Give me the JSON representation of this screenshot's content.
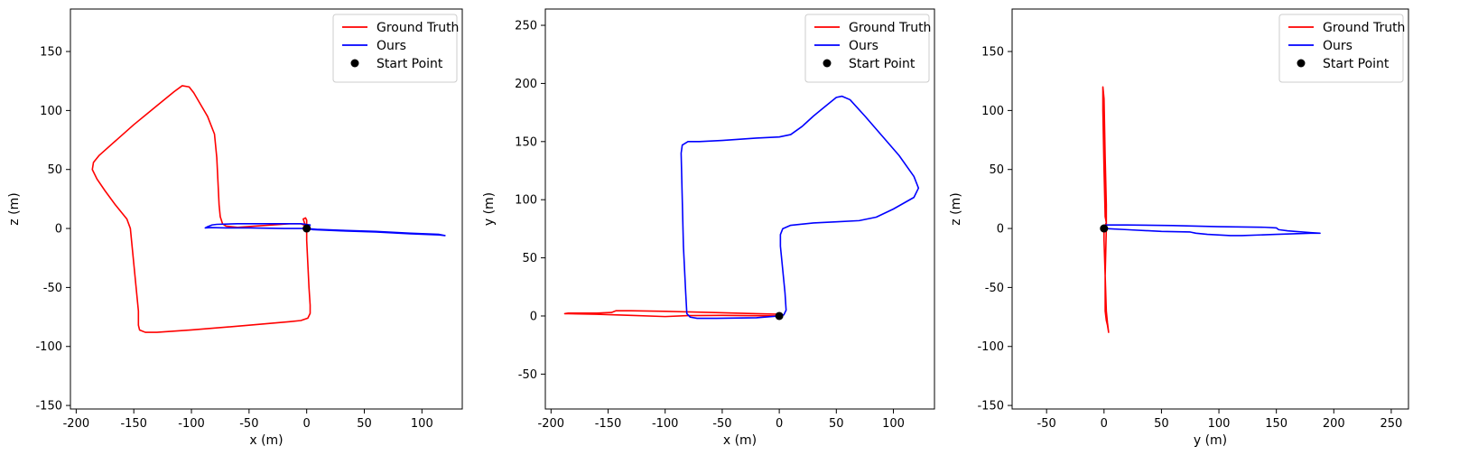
{
  "colors": {
    "ground_truth": "#ff0000",
    "ours": "#0000ff",
    "start": "#000000",
    "frame": "#000000",
    "legend_border": "#cccccc"
  },
  "chart_data": [
    {
      "type": "line",
      "xlabel": "x (m)",
      "ylabel": "z (m)",
      "xlim": [
        -205,
        135
      ],
      "ylim": [
        -153,
        186
      ],
      "xticks": [
        -200,
        -150,
        -100,
        -50,
        0,
        50,
        100
      ],
      "yticks": [
        -150,
        -100,
        -50,
        0,
        50,
        100,
        150
      ],
      "legend": {
        "position": "top-right",
        "entries": [
          "Ground Truth",
          "Ours",
          "Start Point"
        ]
      },
      "series": [
        {
          "name": "Ground Truth",
          "style": "line",
          "points": [
            [
              0,
              0
            ],
            [
              -2,
              5
            ],
            [
              -3,
              8
            ],
            [
              -1,
              9
            ],
            [
              0,
              7
            ],
            [
              0,
              -10
            ],
            [
              1,
              -30
            ],
            [
              2,
              -50
            ],
            [
              3,
              -65
            ],
            [
              3,
              -72
            ],
            [
              1,
              -76
            ],
            [
              -5,
              -78
            ],
            [
              -15,
              -79
            ],
            [
              -50,
              -82
            ],
            [
              -100,
              -86
            ],
            [
              -130,
              -88
            ],
            [
              -140,
              -88
            ],
            [
              -145,
              -86
            ],
            [
              -146,
              -82
            ],
            [
              -146,
              -70
            ],
            [
              -148,
              -50
            ],
            [
              -150,
              -30
            ],
            [
              -152,
              -10
            ],
            [
              -153,
              0
            ],
            [
              -156,
              8
            ],
            [
              -166,
              20
            ],
            [
              -175,
              32
            ],
            [
              -182,
              42
            ],
            [
              -186,
              50
            ],
            [
              -185,
              56
            ],
            [
              -180,
              62
            ],
            [
              -165,
              75
            ],
            [
              -150,
              88
            ],
            [
              -130,
              104
            ],
            [
              -115,
              116
            ],
            [
              -108,
              121
            ],
            [
              -102,
              120
            ],
            [
              -98,
              115
            ],
            [
              -92,
              105
            ],
            [
              -86,
              95
            ],
            [
              -80,
              80
            ],
            [
              -78,
              60
            ],
            [
              -77,
              40
            ],
            [
              -76,
              20
            ],
            [
              -75,
              10
            ],
            [
              -73,
              4
            ],
            [
              -70,
              2
            ],
            [
              -60,
              1
            ],
            [
              -45,
              2
            ],
            [
              -30,
              3
            ],
            [
              -15,
              4
            ],
            [
              -5,
              4
            ],
            [
              0,
              2
            ],
            [
              0,
              0
            ]
          ]
        },
        {
          "name": "Ours",
          "style": "line",
          "points": [
            [
              0,
              0
            ],
            [
              -20,
              0
            ],
            [
              -50,
              0.5
            ],
            [
              -70,
              0.5
            ],
            [
              -83,
              0.8
            ],
            [
              -88,
              0.5
            ],
            [
              -86,
              1.5
            ],
            [
              -82,
              3
            ],
            [
              -78,
              3.5
            ],
            [
              -60,
              4
            ],
            [
              -30,
              4
            ],
            [
              -5,
              4
            ],
            [
              3,
              3
            ],
            [
              1,
              0
            ],
            [
              5,
              -1
            ],
            [
              30,
              -2
            ],
            [
              60,
              -3
            ],
            [
              90,
              -4.5
            ],
            [
              115,
              -5.5
            ],
            [
              120,
              -6
            ],
            [
              115,
              -5
            ],
            [
              90,
              -4
            ],
            [
              60,
              -2.5
            ],
            [
              30,
              -1.5
            ],
            [
              10,
              -0.8
            ],
            [
              0,
              0
            ]
          ]
        },
        {
          "name": "Start Point",
          "style": "marker",
          "points": [
            [
              0,
              0
            ]
          ]
        }
      ]
    },
    {
      "type": "line",
      "xlabel": "x (m)",
      "ylabel": "y (m)",
      "xlim": [
        -205,
        136
      ],
      "ylim": [
        -80,
        264
      ],
      "xticks": [
        -200,
        -150,
        -100,
        -50,
        0,
        50,
        100
      ],
      "yticks": [
        -50,
        0,
        50,
        100,
        150,
        200,
        250
      ],
      "legend": {
        "position": "top-right",
        "entries": [
          "Ground Truth",
          "Ours",
          "Start Point"
        ]
      },
      "series": [
        {
          "name": "Ground Truth",
          "style": "line",
          "points": [
            [
              0,
              0
            ],
            [
              -50,
              0.5
            ],
            [
              -80,
              0.3
            ],
            [
              -100,
              -0.5
            ],
            [
              -130,
              0.5
            ],
            [
              -160,
              1.5
            ],
            [
              -185,
              2
            ],
            [
              -188,
              2
            ],
            [
              -185,
              2.5
            ],
            [
              -160,
              2.5
            ],
            [
              -147,
              3
            ],
            [
              -143,
              4.5
            ],
            [
              -130,
              4.5
            ],
            [
              -100,
              4
            ],
            [
              -60,
              3
            ],
            [
              -20,
              2
            ],
            [
              0,
              1.5
            ],
            [
              0,
              0
            ]
          ]
        },
        {
          "name": "Ours",
          "style": "line",
          "points": [
            [
              0,
              0
            ],
            [
              -20,
              -1.5
            ],
            [
              -55,
              -2
            ],
            [
              -72,
              -2
            ],
            [
              -78,
              -1
            ],
            [
              -81,
              2
            ],
            [
              -82,
              20
            ],
            [
              -84,
              60
            ],
            [
              -85,
              100
            ],
            [
              -86,
              140
            ],
            [
              -85,
              147
            ],
            [
              -80,
              150
            ],
            [
              -70,
              150
            ],
            [
              -50,
              151
            ],
            [
              -20,
              153
            ],
            [
              0,
              154
            ],
            [
              10,
              156
            ],
            [
              20,
              163
            ],
            [
              30,
              172
            ],
            [
              40,
              180
            ],
            [
              50,
              188
            ],
            [
              55,
              189
            ],
            [
              62,
              186
            ],
            [
              75,
              172
            ],
            [
              90,
              155
            ],
            [
              105,
              138
            ],
            [
              118,
              120
            ],
            [
              122,
              110
            ],
            [
              118,
              102
            ],
            [
              100,
              92
            ],
            [
              85,
              85
            ],
            [
              70,
              82
            ],
            [
              50,
              81
            ],
            [
              30,
              80
            ],
            [
              10,
              78
            ],
            [
              3,
              75
            ],
            [
              1,
              70
            ],
            [
              1,
              60
            ],
            [
              3,
              40
            ],
            [
              5,
              20
            ],
            [
              6,
              5
            ],
            [
              4,
              1
            ],
            [
              0,
              0
            ]
          ]
        },
        {
          "name": "Start Point",
          "style": "marker",
          "points": [
            [
              0,
              0
            ]
          ]
        }
      ]
    },
    {
      "type": "line",
      "xlabel": "y (m)",
      "ylabel": "z (m)",
      "xlim": [
        -80,
        265
      ],
      "ylim": [
        -153,
        186
      ],
      "xticks": [
        -50,
        0,
        50,
        100,
        150,
        200,
        250
      ],
      "yticks": [
        -150,
        -100,
        -50,
        0,
        50,
        100,
        150
      ],
      "legend": {
        "position": "top-right",
        "entries": [
          "Ground Truth",
          "Ours",
          "Start Point"
        ]
      },
      "series": [
        {
          "name": "Ground Truth",
          "style": "line",
          "points": [
            [
              0,
              0
            ],
            [
              2,
              5
            ],
            [
              1,
              10
            ],
            [
              0,
              50
            ],
            [
              -1,
              100
            ],
            [
              -1,
              120
            ],
            [
              0,
              110
            ],
            [
              1,
              60
            ],
            [
              2,
              20
            ],
            [
              2,
              0
            ],
            [
              1,
              -40
            ],
            [
              1,
              -70
            ],
            [
              2,
              -78
            ],
            [
              3,
              -82
            ],
            [
              4,
              -88
            ],
            [
              3,
              -80
            ],
            [
              2,
              -70
            ],
            [
              1,
              -40
            ],
            [
              0,
              -10
            ],
            [
              0,
              0
            ]
          ]
        },
        {
          "name": "Ours",
          "style": "line",
          "points": [
            [
              0,
              0
            ],
            [
              0,
              2
            ],
            [
              2,
              3
            ],
            [
              20,
              3
            ],
            [
              60,
              2.5
            ],
            [
              100,
              1.5
            ],
            [
              140,
              1
            ],
            [
              150,
              0.5
            ],
            [
              152,
              -1
            ],
            [
              160,
              -2
            ],
            [
              180,
              -3.5
            ],
            [
              188,
              -4
            ],
            [
              180,
              -4
            ],
            [
              150,
              -5
            ],
            [
              120,
              -6
            ],
            [
              110,
              -6
            ],
            [
              90,
              -5
            ],
            [
              80,
              -4
            ],
            [
              75,
              -3
            ],
            [
              50,
              -2.5
            ],
            [
              20,
              -1
            ],
            [
              0,
              0
            ]
          ]
        },
        {
          "name": "Start Point",
          "style": "marker",
          "points": [
            [
              0,
              0
            ]
          ]
        }
      ]
    }
  ]
}
